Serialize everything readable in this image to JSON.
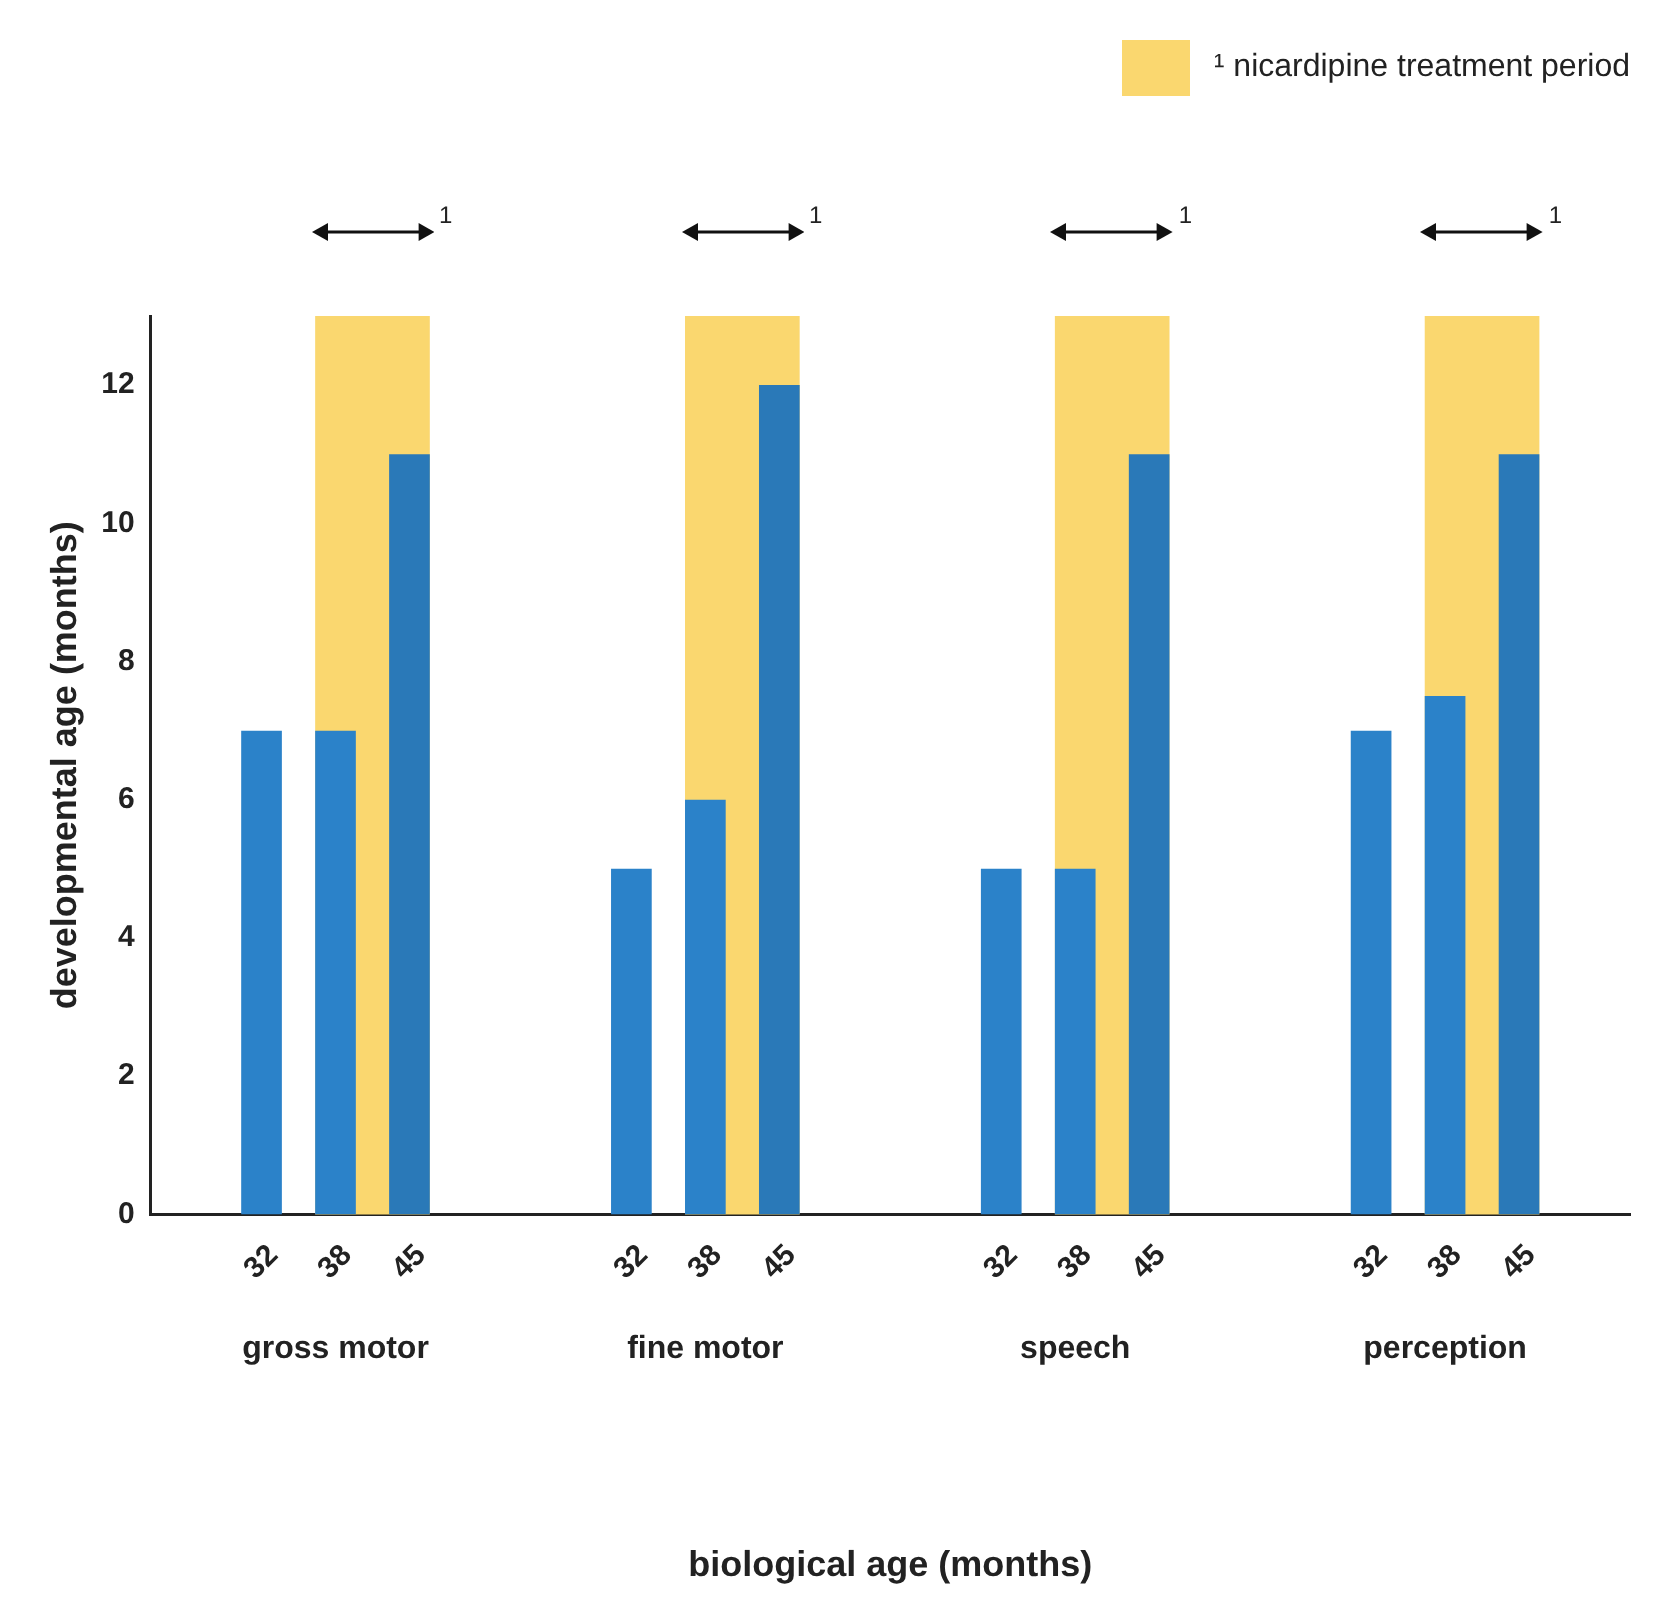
{
  "chart_data": {
    "type": "bar",
    "xlabel": "biological age (months)",
    "ylabel": "developmental age (months)",
    "categories": [
      "gross motor",
      "fine motor",
      "speech",
      "perception"
    ],
    "series": [
      {
        "name": "32",
        "color": "#2b82c9",
        "values": [
          7,
          5,
          5,
          7
        ]
      },
      {
        "name": "38",
        "color": "#2b82c9",
        "values": [
          7,
          6,
          5,
          7.5
        ]
      },
      {
        "name": "45",
        "color": "#2a79b8",
        "values": [
          11,
          12,
          11,
          11
        ]
      }
    ],
    "ylim": [
      0,
      13
    ],
    "yticks": [
      0,
      2,
      4,
      6,
      8,
      10,
      12
    ],
    "grid": false,
    "legend": "top right",
    "bands": [
      {
        "axis": "x",
        "from": "gross motor",
        "to": "gross motor",
        "label": "¹ nicardipine treatment period",
        "color": "#fad76f"
      },
      {
        "axis": "x",
        "from": "fine motor",
        "to": "fine motor",
        "color": "#fad76f"
      },
      {
        "axis": "x",
        "from": "speech",
        "to": "speech",
        "color": "#fad76f"
      },
      {
        "axis": "x",
        "from": "perception",
        "to": "perception",
        "color": "#fad76f"
      }
    ],
    "annotations": [
      "1",
      "1",
      "1",
      "1"
    ]
  }
}
